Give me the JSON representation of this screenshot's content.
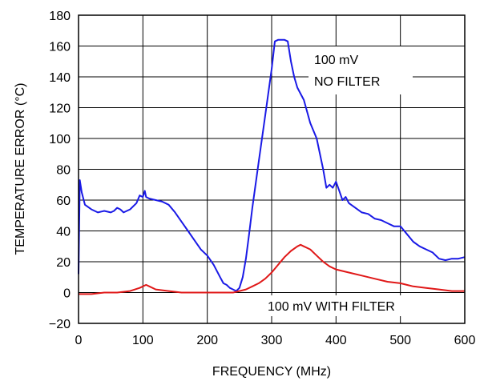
{
  "chart_data": {
    "type": "line",
    "xlabel": "FREQUENCY (MHz)",
    "ylabel": "TEMPERATURE ERROR (°C)",
    "xlim": [
      0,
      600
    ],
    "ylim": [
      -20,
      180
    ],
    "xticks": [
      0,
      100,
      200,
      300,
      400,
      500,
      600
    ],
    "xtick_labels": [
      "0",
      "100",
      "200",
      "300",
      "400",
      "500",
      "600"
    ],
    "yticks": [
      -20,
      0,
      20,
      40,
      60,
      80,
      100,
      120,
      140,
      160,
      180
    ],
    "ytick_labels": [
      "−20",
      "0",
      "20",
      "40",
      "60",
      "80",
      "100",
      "120",
      "140",
      "160",
      "180"
    ],
    "grid": true,
    "series": [
      {
        "name": "100 mV NO FILTER",
        "color": "#1a1ae6",
        "x": [
          0,
          2,
          5,
          10,
          20,
          30,
          40,
          50,
          55,
          60,
          65,
          70,
          80,
          90,
          95,
          100,
          103,
          105,
          110,
          120,
          130,
          140,
          150,
          160,
          170,
          180,
          190,
          200,
          210,
          220,
          225,
          230,
          235,
          240,
          245,
          250,
          255,
          260,
          265,
          270,
          280,
          290,
          300,
          305,
          310,
          315,
          320,
          325,
          330,
          335,
          340,
          350,
          360,
          370,
          380,
          385,
          390,
          395,
          400,
          405,
          410,
          415,
          420,
          430,
          440,
          450,
          460,
          470,
          480,
          490,
          500,
          510,
          520,
          530,
          540,
          550,
          560,
          570,
          580,
          590,
          600
        ],
        "y": [
          12,
          73,
          65,
          57,
          54,
          52,
          53,
          52,
          53,
          55,
          54,
          52,
          54,
          58,
          63,
          62,
          66,
          62,
          61,
          60,
          59,
          57,
          52,
          46,
          40,
          34,
          28,
          24,
          18,
          10,
          6,
          5,
          3,
          2,
          1,
          3,
          10,
          22,
          38,
          55,
          85,
          115,
          145,
          163,
          164,
          164,
          164,
          163,
          150,
          140,
          133,
          125,
          110,
          100,
          80,
          68,
          70,
          68,
          72,
          66,
          60,
          62,
          58,
          55,
          52,
          51,
          48,
          47,
          45,
          43,
          43,
          38,
          33,
          30,
          28,
          26,
          22,
          21,
          22,
          22,
          23
        ]
      },
      {
        "name": "100 mV WITH FILTER",
        "color": "#e01818",
        "x": [
          0,
          20,
          40,
          60,
          80,
          95,
          100,
          105,
          110,
          120,
          140,
          160,
          180,
          200,
          220,
          240,
          250,
          260,
          270,
          280,
          290,
          300,
          310,
          320,
          330,
          340,
          345,
          350,
          360,
          370,
          380,
          390,
          400,
          420,
          440,
          460,
          480,
          500,
          520,
          540,
          560,
          580,
          600
        ],
        "y": [
          -1,
          -1,
          0,
          0,
          1,
          3,
          4,
          5,
          4,
          2,
          1,
          0,
          0,
          0,
          0,
          0,
          1,
          2,
          4,
          6,
          9,
          13,
          18,
          23,
          27,
          30,
          31,
          30,
          28,
          24,
          20,
          17,
          15,
          13,
          11,
          9,
          7,
          6,
          4,
          3,
          2,
          1,
          1
        ]
      }
    ],
    "annotations": {
      "no_filter_line1": "100 mV",
      "no_filter_line2": "NO FILTER",
      "with_filter": "100 mV WITH FILTER"
    }
  }
}
